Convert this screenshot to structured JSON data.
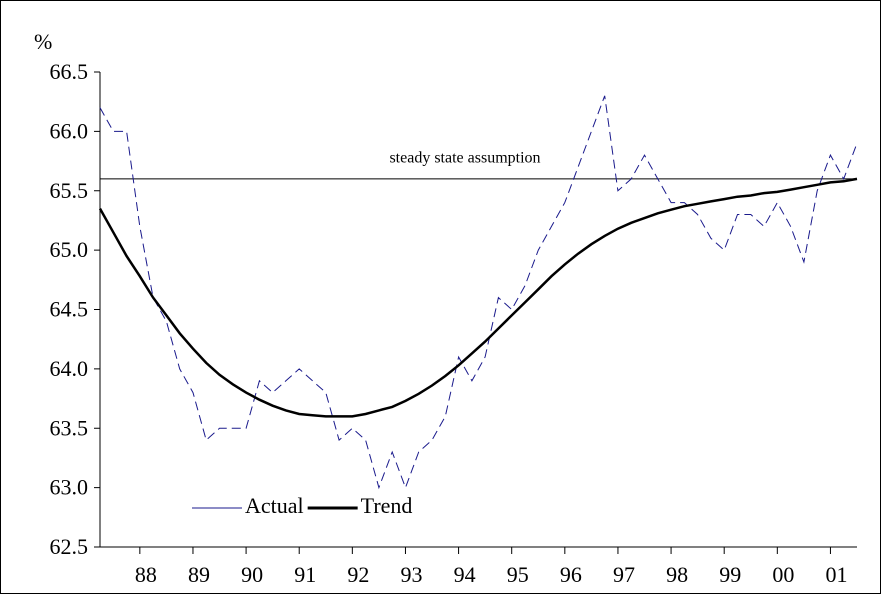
{
  "chart_data": {
    "type": "line",
    "y_label": "%",
    "x": [
      1987.25,
      1987.5,
      1987.75,
      1988,
      1988.25,
      1988.5,
      1988.75,
      1989,
      1989.25,
      1989.5,
      1989.75,
      1990,
      1990.25,
      1990.5,
      1990.75,
      1991,
      1991.25,
      1991.5,
      1991.75,
      1992,
      1992.25,
      1992.5,
      1992.75,
      1993,
      1993.25,
      1993.5,
      1993.75,
      1994,
      1994.25,
      1994.5,
      1994.75,
      1995,
      1995.25,
      1995.5,
      1995.75,
      1996,
      1996.25,
      1996.5,
      1996.75,
      1997,
      1997.25,
      1997.5,
      1997.75,
      1998,
      1998.25,
      1998.5,
      1998.75,
      1999,
      1999.25,
      1999.5,
      1999.75,
      2000,
      2000.25,
      2000.5,
      2000.75,
      2001,
      2001.25,
      2001.5
    ],
    "series": [
      {
        "name": "Actual",
        "color": "#1a1a8c",
        "dashed": true,
        "values": [
          66.2,
          66.0,
          66.0,
          65.2,
          64.6,
          64.4,
          64.0,
          63.8,
          63.4,
          63.5,
          63.5,
          63.5,
          63.9,
          63.8,
          63.9,
          64.0,
          63.9,
          63.8,
          63.4,
          63.5,
          63.4,
          63.0,
          63.3,
          63.0,
          63.3,
          63.4,
          63.6,
          64.1,
          63.9,
          64.1,
          64.6,
          64.5,
          64.7,
          65.0,
          65.2,
          65.4,
          65.7,
          66.0,
          66.3,
          65.5,
          65.6,
          65.8,
          65.6,
          65.4,
          65.4,
          65.3,
          65.1,
          65.0,
          65.3,
          65.3,
          65.2,
          65.4,
          65.2,
          64.9,
          65.5,
          65.8,
          65.6,
          65.9
        ]
      },
      {
        "name": "Trend",
        "color": "#000000",
        "dashed": false,
        "values": [
          65.35,
          65.15,
          64.95,
          64.78,
          64.6,
          64.45,
          64.3,
          64.17,
          64.05,
          63.95,
          63.87,
          63.8,
          63.74,
          63.69,
          63.65,
          63.62,
          63.61,
          63.6,
          63.6,
          63.6,
          63.62,
          63.65,
          63.68,
          63.73,
          63.79,
          63.86,
          63.94,
          64.03,
          64.13,
          64.23,
          64.34,
          64.45,
          64.56,
          64.67,
          64.78,
          64.88,
          64.97,
          65.05,
          65.12,
          65.18,
          65.23,
          65.27,
          65.31,
          65.34,
          65.37,
          65.39,
          65.41,
          65.43,
          65.45,
          65.46,
          65.48,
          65.49,
          65.51,
          65.53,
          65.55,
          65.57,
          65.58,
          65.6
        ]
      }
    ],
    "reference_line": {
      "value": 65.6,
      "label": "steady state assumption"
    },
    "xlim": [
      1987.25,
      2001.5
    ],
    "xticks": [
      {
        "value": 1988,
        "label": "88"
      },
      {
        "value": 1989,
        "label": "89"
      },
      {
        "value": 1990,
        "label": "90"
      },
      {
        "value": 1991,
        "label": "91"
      },
      {
        "value": 1992,
        "label": "92"
      },
      {
        "value": 1993,
        "label": "93"
      },
      {
        "value": 1994,
        "label": "94"
      },
      {
        "value": 1995,
        "label": "95"
      },
      {
        "value": 1996,
        "label": "96"
      },
      {
        "value": 1997,
        "label": "97"
      },
      {
        "value": 1998,
        "label": "98"
      },
      {
        "value": 1999,
        "label": "99"
      },
      {
        "value": 2000,
        "label": "00"
      },
      {
        "value": 2001,
        "label": "01"
      }
    ],
    "ylim": [
      62.5,
      66.5
    ],
    "yticks": [
      62.5,
      {
        "value": 63,
        "label": "63.0"
      },
      63.5,
      {
        "value": 64,
        "label": "64.0"
      },
      64.5,
      {
        "value": 65,
        "label": "65.0"
      },
      65.5,
      {
        "value": 66,
        "label": "66.0"
      },
      66.5
    ]
  }
}
